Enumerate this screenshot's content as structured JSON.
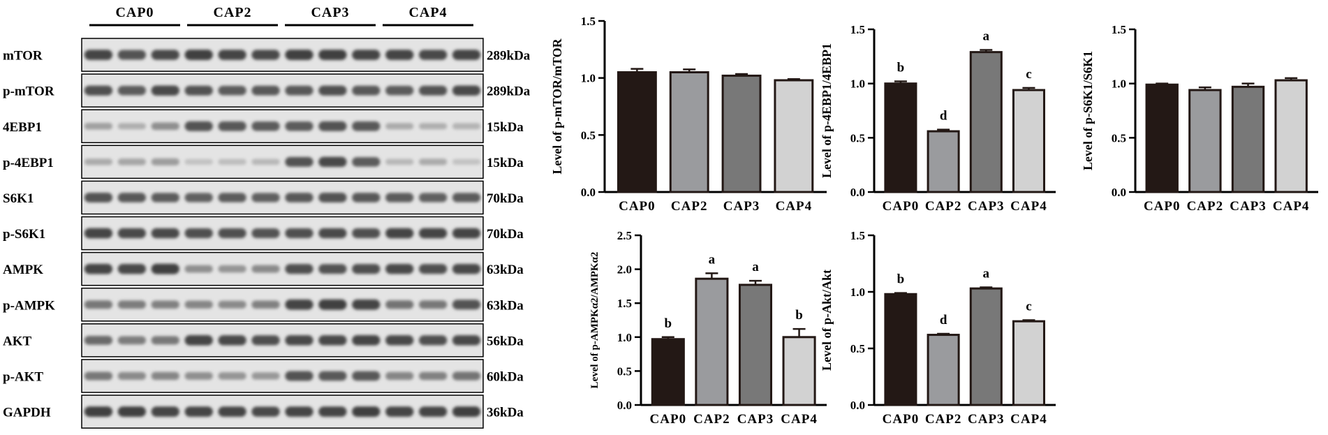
{
  "blot": {
    "groups": [
      "CAP0",
      "CAP2",
      "CAP3",
      "CAP4"
    ],
    "lanes_per_group": 3,
    "rows": [
      {
        "label": "mTOR",
        "size": "289kDa",
        "intensity": [
          0.72,
          0.66,
          0.7,
          0.74,
          0.72,
          0.7,
          0.74,
          0.74,
          0.72,
          0.72,
          0.7,
          0.72
        ]
      },
      {
        "label": "p-mTOR",
        "size": "289kDa",
        "intensity": [
          0.68,
          0.62,
          0.7,
          0.66,
          0.62,
          0.64,
          0.64,
          0.68,
          0.64,
          0.62,
          0.66,
          0.7
        ]
      },
      {
        "label": "4EBP1",
        "size": "15kDa",
        "intensity": [
          0.32,
          0.26,
          0.4,
          0.66,
          0.64,
          0.62,
          0.62,
          0.66,
          0.64,
          0.28,
          0.26,
          0.24
        ]
      },
      {
        "label": "p-4EBP1",
        "size": "15kDa",
        "intensity": [
          0.28,
          0.3,
          0.34,
          0.18,
          0.2,
          0.22,
          0.66,
          0.7,
          0.62,
          0.22,
          0.28,
          0.18
        ]
      },
      {
        "label": "S6K1",
        "size": "70kDa",
        "intensity": [
          0.66,
          0.64,
          0.62,
          0.6,
          0.62,
          0.6,
          0.64,
          0.66,
          0.64,
          0.62,
          0.6,
          0.62
        ]
      },
      {
        "label": "p-S6K1",
        "size": "70kDa",
        "intensity": [
          0.72,
          0.7,
          0.7,
          0.68,
          0.68,
          0.66,
          0.68,
          0.7,
          0.68,
          0.72,
          0.72,
          0.72
        ]
      },
      {
        "label": "AMPK",
        "size": "63kDa",
        "intensity": [
          0.72,
          0.7,
          0.74,
          0.4,
          0.38,
          0.42,
          0.68,
          0.66,
          0.68,
          0.7,
          0.68,
          0.7
        ]
      },
      {
        "label": "p-AMPK",
        "size": "63kDa",
        "intensity": [
          0.5,
          0.48,
          0.46,
          0.44,
          0.42,
          0.46,
          0.72,
          0.74,
          0.72,
          0.52,
          0.5,
          0.66
        ]
      },
      {
        "label": "AKT",
        "size": "56kDa",
        "intensity": [
          0.56,
          0.48,
          0.5,
          0.72,
          0.7,
          0.68,
          0.7,
          0.7,
          0.72,
          0.7,
          0.68,
          0.7
        ]
      },
      {
        "label": "p-AKT",
        "size": "60kDa",
        "intensity": [
          0.5,
          0.42,
          0.44,
          0.4,
          0.38,
          0.36,
          0.66,
          0.64,
          0.64,
          0.44,
          0.46,
          0.52
        ]
      },
      {
        "label": "GAPDH",
        "size": "36kDa",
        "intensity": [
          0.74,
          0.74,
          0.72,
          0.72,
          0.72,
          0.7,
          0.72,
          0.72,
          0.74,
          0.72,
          0.72,
          0.74
        ]
      }
    ]
  },
  "chart_data": [
    {
      "type": "bar",
      "categories": [
        "CAP0",
        "CAP2",
        "CAP3",
        "CAP4"
      ],
      "values": [
        1.05,
        1.05,
        1.02,
        0.98
      ],
      "errors": [
        0.03,
        0.025,
        0.015,
        0.01
      ],
      "letters": [
        "",
        "",
        "",
        ""
      ],
      "colors": [
        "#231815",
        "#9a9b9e",
        "#787878",
        "#d2d2d2"
      ],
      "ylabel": "Level of p-mTOR/mTOR",
      "ylim": [
        0,
        1.5
      ],
      "yticks": [
        0.0,
        0.5,
        1.0,
        1.5
      ]
    },
    {
      "type": "bar",
      "categories": [
        "CAP0",
        "CAP2",
        "CAP3",
        "CAP4"
      ],
      "values": [
        1.0,
        0.56,
        1.29,
        0.94
      ],
      "errors": [
        0.02,
        0.015,
        0.02,
        0.02
      ],
      "letters": [
        "b",
        "d",
        "a",
        "c"
      ],
      "colors": [
        "#231815",
        "#9a9b9e",
        "#787878",
        "#d2d2d2"
      ],
      "ylabel": "Level of p-4EBP1/4EBP1",
      "ylim": [
        0,
        1.5
      ],
      "yticks": [
        0.0,
        0.5,
        1.0,
        1.5
      ]
    },
    {
      "type": "bar",
      "categories": [
        "CAP0",
        "CAP2",
        "CAP3",
        "CAP4"
      ],
      "values": [
        0.99,
        0.94,
        0.97,
        1.03
      ],
      "errors": [
        0.01,
        0.025,
        0.03,
        0.02
      ],
      "letters": [
        "",
        "",
        "",
        ""
      ],
      "colors": [
        "#231815",
        "#9a9b9e",
        "#787878",
        "#d2d2d2"
      ],
      "ylabel": "Level of p-S6K1/S6K1",
      "ylim": [
        0,
        1.5
      ],
      "yticks": [
        0.0,
        0.5,
        1.0,
        1.5
      ]
    },
    {
      "type": "bar",
      "categories": [
        "CAP0",
        "CAP2",
        "CAP3",
        "CAP4"
      ],
      "values": [
        0.97,
        1.86,
        1.77,
        1.0
      ],
      "errors": [
        0.03,
        0.08,
        0.06,
        0.12
      ],
      "letters": [
        "b",
        "a",
        "a",
        "b"
      ],
      "colors": [
        "#231815",
        "#9a9b9e",
        "#787878",
        "#d2d2d2"
      ],
      "ylabel": "Level of p-AMPKα2/AMPKα2",
      "ylim": [
        0,
        2.5
      ],
      "yticks": [
        0.0,
        0.5,
        1.0,
        1.5,
        2.0,
        2.5
      ]
    },
    {
      "type": "bar",
      "categories": [
        "CAP0",
        "CAP2",
        "CAP3",
        "CAP4"
      ],
      "values": [
        0.98,
        0.62,
        1.03,
        0.74
      ],
      "errors": [
        0.01,
        0.01,
        0.01,
        0.01
      ],
      "letters": [
        "b",
        "d",
        "a",
        "c"
      ],
      "colors": [
        "#231815",
        "#9a9b9e",
        "#787878",
        "#d2d2d2"
      ],
      "ylabel": "Level of p-Akt/Akt",
      "ylim": [
        0,
        1.5
      ],
      "yticks": [
        0.0,
        0.5,
        1.0,
        1.5
      ]
    }
  ]
}
